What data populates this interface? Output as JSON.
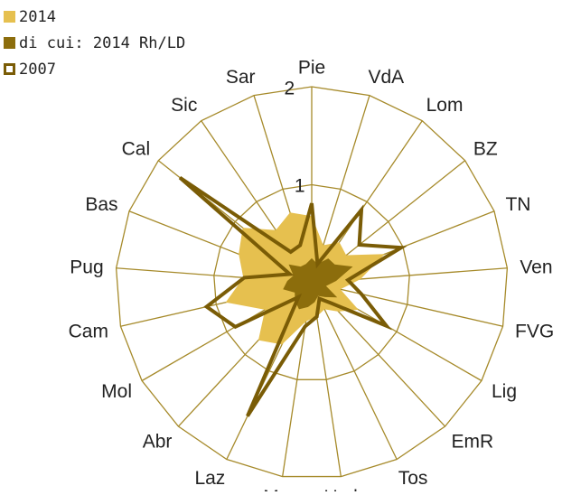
{
  "chart_data": {
    "type": "radar",
    "categories": [
      "Pie",
      "VdA",
      "Lom",
      "BZ",
      "TN",
      "Ven",
      "FVG",
      "Lig",
      "EmR",
      "Tos",
      "Umb",
      "Mar",
      "Laz",
      "Abr",
      "Mol",
      "Cam",
      "Pug",
      "Bas",
      "Cal",
      "Sic",
      "Sar"
    ],
    "series": [
      {
        "name": "2014",
        "color": "#e6c04f",
        "style": "fill",
        "values": [
          0.68,
          0.4,
          0.5,
          0.45,
          0.8,
          0.5,
          0.3,
          0.55,
          0.4,
          0.3,
          0.35,
          0.4,
          0.7,
          0.8,
          0.55,
          0.9,
          0.7,
          0.8,
          0.9,
          0.65,
          0.75
        ]
      },
      {
        "name": "di cui: 2014 Rh/LD",
        "color": "#8c6d0c",
        "style": "fill",
        "values": [
          0.25,
          0.2,
          0.3,
          0.3,
          0.45,
          0.25,
          0.15,
          0.3,
          0.2,
          0.15,
          0.2,
          0.25,
          0.3,
          0.25,
          0.2,
          0.3,
          0.25,
          0.2,
          0.3,
          0.2,
          0.2
        ]
      },
      {
        "name": "2007",
        "color": "#7a5c06",
        "style": "outline",
        "values": [
          0.81,
          0.2,
          0.9,
          0.62,
          0.98,
          0.37,
          0.52,
          0.88,
          0.28,
          0.18,
          0.35,
          0.45,
          1.51,
          0.2,
          0.9,
          1.1,
          0.69,
          0.24,
          1.72,
          0.38,
          0.4
        ]
      }
    ],
    "ylim": [
      0,
      2
    ],
    "yticks": [
      0,
      1,
      2
    ],
    "grid": true,
    "grid_color": "#a68a2a",
    "legend": "top-left"
  }
}
